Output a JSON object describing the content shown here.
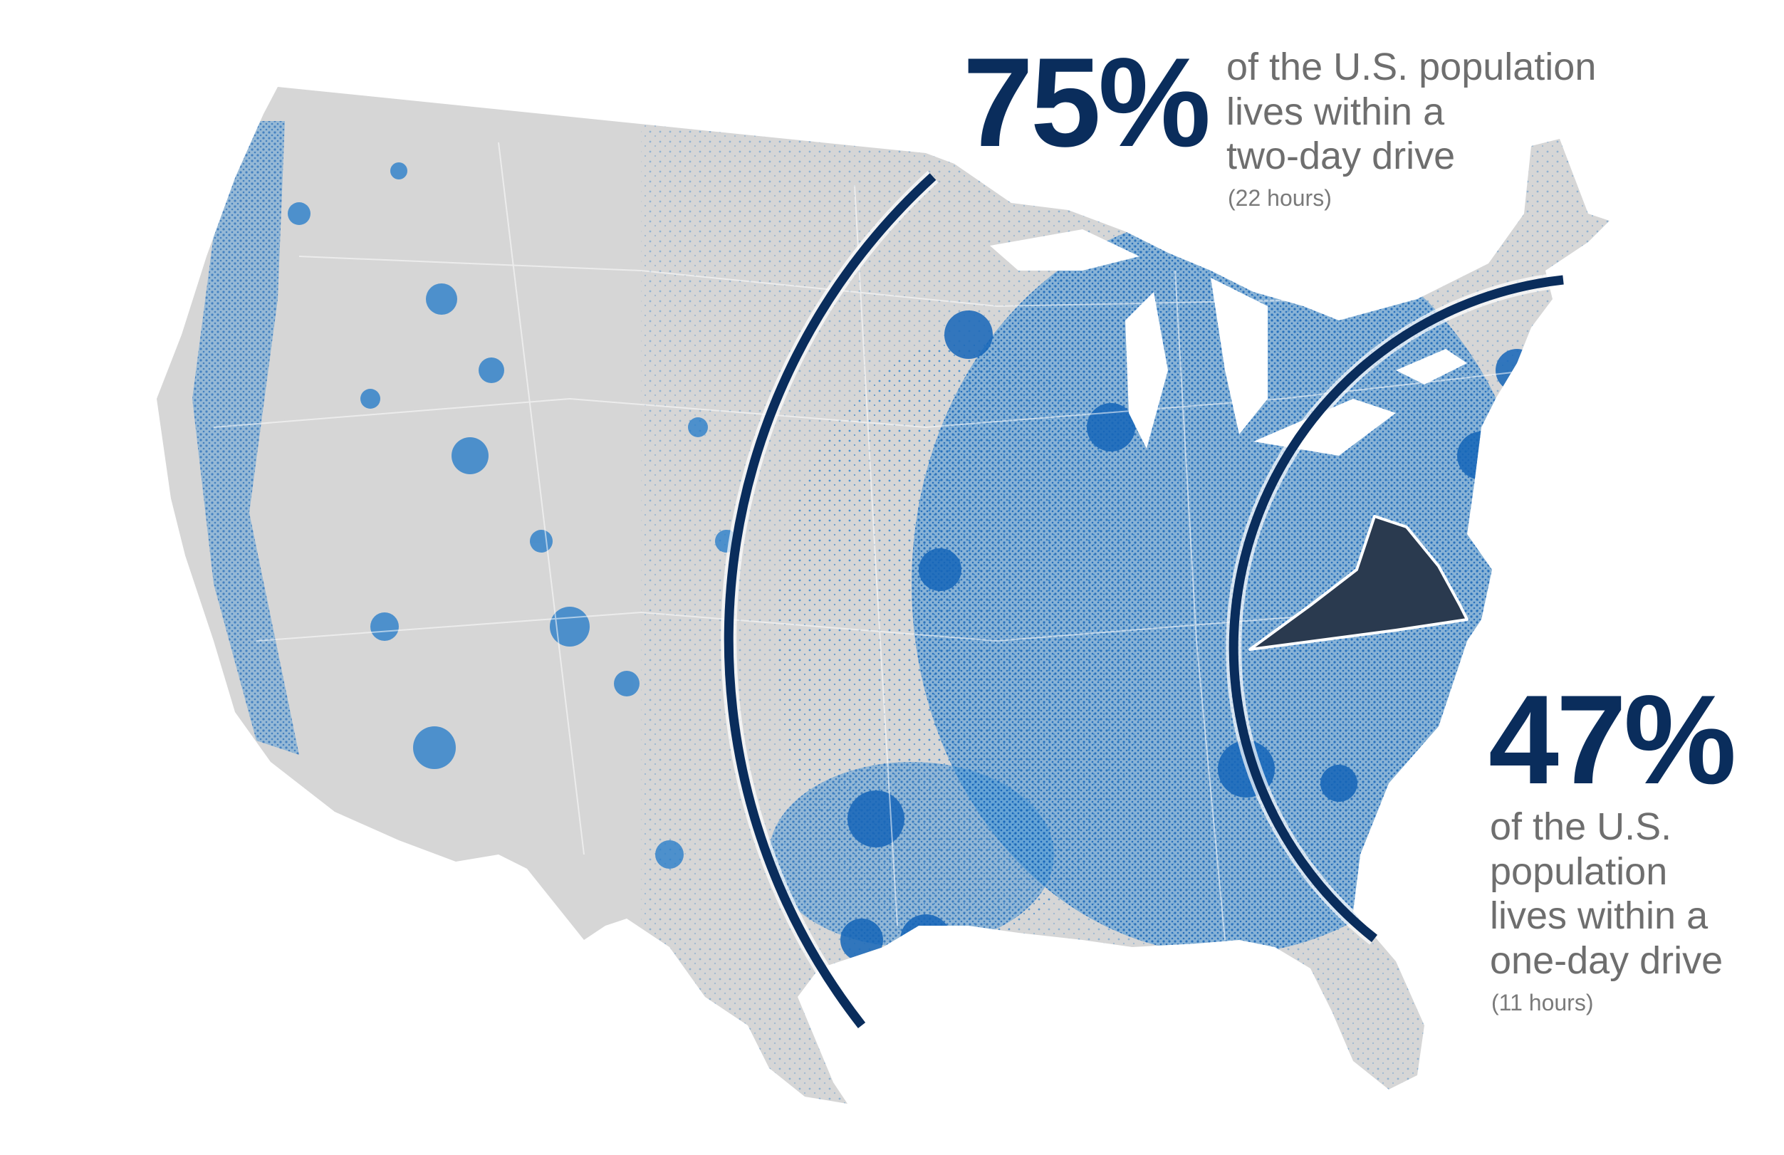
{
  "colors": {
    "land": "#d6d6d6",
    "population": "#1f78c8",
    "arc": "#0a2d5c",
    "state_highlight": "#2a3a4f",
    "roads": "#ffffff",
    "text_gray": "#6e6e6e"
  },
  "callout_two_day": {
    "percent": "75%",
    "line1": "of the U.S. population",
    "line2": "lives within a",
    "line3": "two-day drive",
    "note": "(22 hours)"
  },
  "callout_one_day": {
    "percent": "47%",
    "line1": "of the U.S.",
    "line2": "population",
    "line3": "lives within a",
    "line4": "one-day drive",
    "note": "(11 hours)"
  },
  "map": {
    "highlighted_state": "Virginia",
    "rings": [
      {
        "label": "two-day drive",
        "hours": 22,
        "share": 0.75
      },
      {
        "label": "one-day drive",
        "hours": 11,
        "share": 0.47
      }
    ]
  }
}
